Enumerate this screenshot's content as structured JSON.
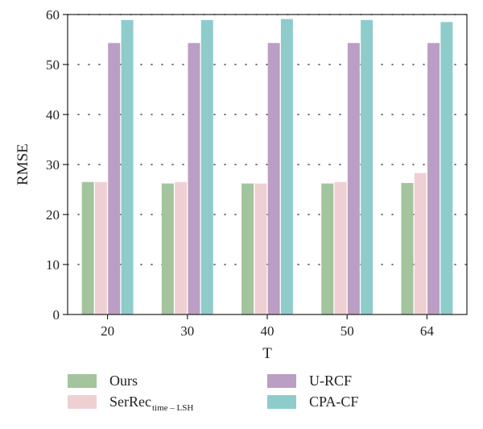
{
  "chart_data": {
    "type": "bar",
    "categories": [
      "20",
      "30",
      "40",
      "50",
      "64"
    ],
    "series": [
      {
        "name": "Ours",
        "sub": "",
        "color": "#a3c49d",
        "values": [
          26.5,
          26.2,
          26.2,
          26.2,
          26.3
        ]
      },
      {
        "name": "SerRec",
        "sub": "time – LSH",
        "color": "#efd0d2",
        "values": [
          26.5,
          26.5,
          26.2,
          26.5,
          28.3
        ]
      },
      {
        "name": "U-RCF",
        "sub": "",
        "color": "#bb9ec4",
        "values": [
          54.3,
          54.3,
          54.3,
          54.3,
          54.3
        ]
      },
      {
        "name": "CPA-CF",
        "sub": "",
        "color": "#8ecccc",
        "values": [
          58.9,
          58.9,
          59.1,
          58.9,
          58.5
        ]
      }
    ],
    "xlabel": "T",
    "ylabel": "RMSE",
    "ylim": [
      0,
      60
    ],
    "yticks": [
      0,
      10,
      20,
      30,
      40,
      50,
      60
    ],
    "grid": "dotted horizontal",
    "legend_position": "bottom"
  }
}
